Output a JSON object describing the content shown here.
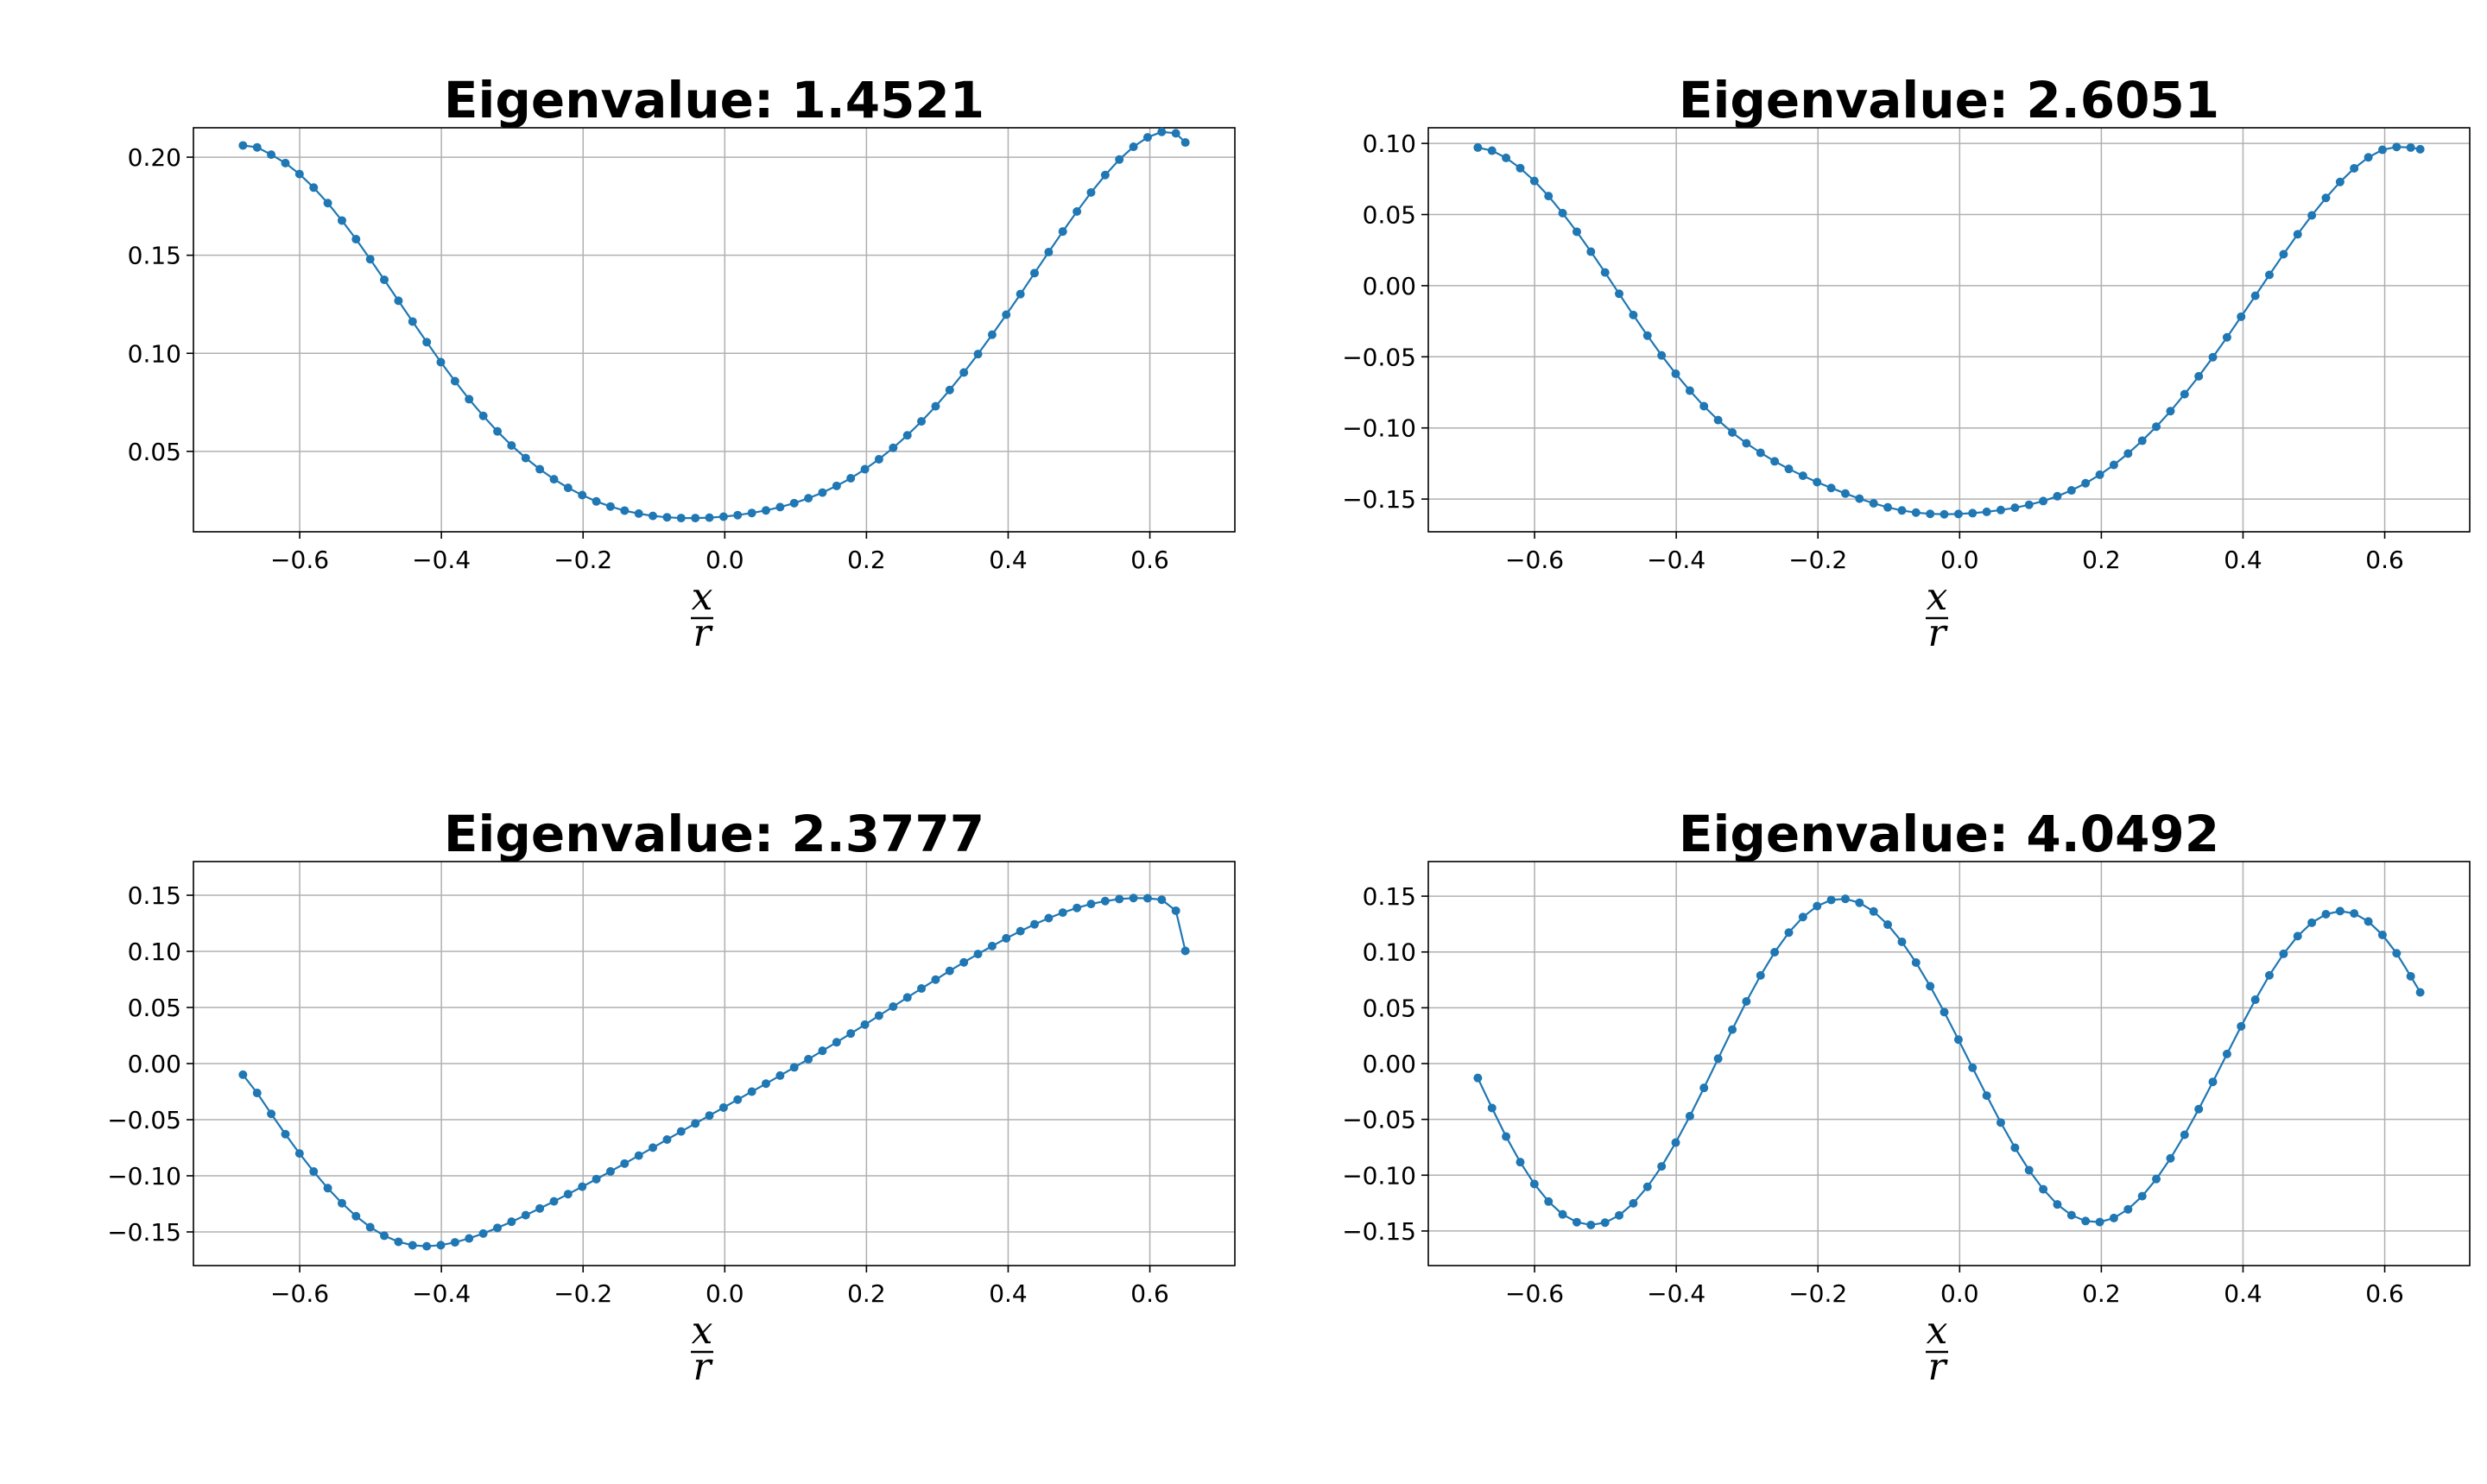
{
  "chart_data": [
    {
      "type": "line",
      "title": "Eigenvalue: 1.4521",
      "xlabel": {
        "numerator": "x",
        "denominator": "r"
      },
      "ylabel": "",
      "xlim": [
        -0.75,
        0.72
      ],
      "ylim": [
        0.009,
        0.215
      ],
      "xticks": [
        -0.6,
        -0.4,
        -0.2,
        0.0,
        0.2,
        0.4,
        0.6
      ],
      "xtick_labels": [
        "−0.6",
        "−0.4",
        "−0.2",
        "0.0",
        "0.2",
        "0.4",
        "0.6"
      ],
      "yticks": [
        0.05,
        0.1,
        0.15,
        0.2
      ],
      "ytick_labels": [
        "0.05",
        "0.10",
        "0.15",
        "0.20"
      ],
      "grid": true,
      "series": [
        {
          "x": [
            -0.6801,
            -0.6601,
            -0.6402,
            -0.6202,
            -0.6003,
            -0.5803,
            -0.5604,
            -0.5404,
            -0.5205,
            -0.5005,
            -0.4806,
            -0.4606,
            -0.4407,
            -0.4207,
            -0.4008,
            -0.3808,
            -0.3609,
            -0.3409,
            -0.3209,
            -0.301,
            -0.281,
            -0.2611,
            -0.2411,
            -0.2212,
            -0.2012,
            -0.1813,
            -0.1613,
            -0.1414,
            -0.1214,
            -0.1015,
            -0.0815,
            -0.0616,
            -0.0416,
            -0.0217,
            -0.0017,
            0.0182,
            0.0382,
            0.0581,
            0.0781,
            0.098,
            0.118,
            0.1379,
            0.1579,
            0.1778,
            0.1978,
            0.2177,
            0.2377,
            0.2577,
            0.2776,
            0.2976,
            0.3175,
            0.3375,
            0.3574,
            0.3774,
            0.3973,
            0.4173,
            0.4372,
            0.4572,
            0.4771,
            0.4971,
            0.517,
            0.537,
            0.5569,
            0.5769,
            0.5968,
            0.6168,
            0.6367,
            0.6501
          ],
          "values": [
            0.206,
            0.205,
            0.2013,
            0.197,
            0.1914,
            0.1845,
            0.1766,
            0.1677,
            0.1582,
            0.148,
            0.1375,
            0.1268,
            0.1162,
            0.1057,
            0.0955,
            0.0858,
            0.0766,
            0.0681,
            0.0602,
            0.053,
            0.0466,
            0.0409,
            0.0358,
            0.0314,
            0.0277,
            0.0245,
            0.0219,
            0.0198,
            0.0183,
            0.0171,
            0.0164,
            0.016,
            0.016,
            0.0162,
            0.0167,
            0.0175,
            0.0186,
            0.0199,
            0.0216,
            0.0236,
            0.0261,
            0.029,
            0.0324,
            0.0363,
            0.0409,
            0.046,
            0.0518,
            0.0582,
            0.0653,
            0.073,
            0.0813,
            0.0902,
            0.0996,
            0.1095,
            0.1197,
            0.1302,
            0.1409,
            0.1516,
            0.1621,
            0.1723,
            0.182,
            0.1909,
            0.1988,
            0.2053,
            0.2101,
            0.2129,
            0.2122,
            0.2075
          ]
        }
      ]
    },
    {
      "type": "line",
      "title": "Eigenvalue: 2.6051",
      "xlabel": {
        "numerator": "x",
        "denominator": "r"
      },
      "ylabel": "",
      "xlim": [
        -0.75,
        0.72
      ],
      "ylim": [
        -0.173,
        0.111
      ],
      "xticks": [
        -0.6,
        -0.4,
        -0.2,
        0.0,
        0.2,
        0.4,
        0.6
      ],
      "xtick_labels": [
        "−0.6",
        "−0.4",
        "−0.2",
        "0.0",
        "0.2",
        "0.4",
        "0.6"
      ],
      "yticks": [
        -0.15,
        -0.1,
        -0.05,
        0.0,
        0.05,
        0.1
      ],
      "ytick_labels": [
        "−0.15",
        "−0.10",
        "−0.05",
        "0.00",
        "0.05",
        "0.10"
      ],
      "grid": true,
      "series": [
        {
          "x": [
            -0.6801,
            -0.6601,
            -0.6402,
            -0.6202,
            -0.6003,
            -0.5803,
            -0.5604,
            -0.5404,
            -0.5205,
            -0.5005,
            -0.4806,
            -0.4606,
            -0.4407,
            -0.4207,
            -0.4008,
            -0.3808,
            -0.3609,
            -0.3409,
            -0.3209,
            -0.301,
            -0.281,
            -0.2611,
            -0.2411,
            -0.2212,
            -0.2012,
            -0.1813,
            -0.1613,
            -0.1414,
            -0.1214,
            -0.1015,
            -0.0815,
            -0.0616,
            -0.0416,
            -0.0217,
            -0.0017,
            0.0182,
            0.0382,
            0.0581,
            0.0781,
            0.098,
            0.118,
            0.1379,
            0.1579,
            0.1778,
            0.1978,
            0.2177,
            0.2377,
            0.2577,
            0.2776,
            0.2976,
            0.3175,
            0.3375,
            0.3574,
            0.3774,
            0.3973,
            0.4173,
            0.4372,
            0.4572,
            0.4771,
            0.4971,
            0.517,
            0.537,
            0.5569,
            0.5769,
            0.5968,
            0.6168,
            0.6367,
            0.6501
          ],
          "values": [
            0.0971,
            0.0949,
            0.0898,
            0.0826,
            0.0736,
            0.063,
            0.051,
            0.0379,
            0.0239,
            0.0093,
            -0.0057,
            -0.0206,
            -0.0351,
            -0.049,
            -0.0619,
            -0.0738,
            -0.0847,
            -0.0945,
            -0.1032,
            -0.1108,
            -0.1175,
            -0.1235,
            -0.1288,
            -0.1336,
            -0.1381,
            -0.1422,
            -0.1461,
            -0.1497,
            -0.153,
            -0.1558,
            -0.158,
            -0.1595,
            -0.1604,
            -0.1607,
            -0.1605,
            -0.1599,
            -0.159,
            -0.1577,
            -0.1561,
            -0.154,
            -0.1514,
            -0.148,
            -0.1439,
            -0.1389,
            -0.1329,
            -0.126,
            -0.118,
            -0.109,
            -0.0991,
            -0.0882,
            -0.0763,
            -0.0637,
            -0.0503,
            -0.0363,
            -0.0218,
            -0.0071,
            0.0076,
            0.0221,
            0.0361,
            0.0494,
            0.0617,
            0.0729,
            0.0825,
            0.0902,
            0.0955,
            0.0975,
            0.0971,
            0.0959
          ]
        }
      ]
    },
    {
      "type": "line",
      "title": "Eigenvalue: 2.3777",
      "xlabel": {
        "numerator": "x",
        "denominator": "r"
      },
      "ylabel": "",
      "xlim": [
        -0.75,
        0.72
      ],
      "ylim": [
        -0.18,
        0.18
      ],
      "xticks": [
        -0.6,
        -0.4,
        -0.2,
        0.0,
        0.2,
        0.4,
        0.6
      ],
      "xtick_labels": [
        "−0.6",
        "−0.4",
        "−0.2",
        "0.0",
        "0.2",
        "0.4",
        "0.6"
      ],
      "yticks": [
        -0.15,
        -0.1,
        -0.05,
        0.0,
        0.05,
        0.1,
        0.15
      ],
      "ytick_labels": [
        "−0.15",
        "−0.10",
        "−0.05",
        "0.00",
        "0.05",
        "0.10",
        "0.15"
      ],
      "grid": true,
      "series": [
        {
          "x": [
            -0.6801,
            -0.6601,
            -0.6402,
            -0.6202,
            -0.6003,
            -0.5803,
            -0.5604,
            -0.5404,
            -0.5205,
            -0.5005,
            -0.4806,
            -0.4606,
            -0.4407,
            -0.4207,
            -0.4008,
            -0.3808,
            -0.3609,
            -0.3409,
            -0.3209,
            -0.301,
            -0.281,
            -0.2611,
            -0.2411,
            -0.2212,
            -0.2012,
            -0.1813,
            -0.1613,
            -0.1414,
            -0.1214,
            -0.1015,
            -0.0815,
            -0.0616,
            -0.0416,
            -0.0217,
            -0.0017,
            0.0182,
            0.0382,
            0.0581,
            0.0781,
            0.098,
            0.118,
            0.1379,
            0.1579,
            0.1778,
            0.1978,
            0.2177,
            0.2377,
            0.2577,
            0.2776,
            0.2976,
            0.3175,
            0.3375,
            0.3574,
            0.3774,
            0.3973,
            0.4173,
            0.4372,
            0.4572,
            0.4771,
            0.4971,
            0.517,
            0.537,
            0.5569,
            0.5769,
            0.5968,
            0.6168,
            0.6367,
            0.6501
          ],
          "values": [
            -0.0099,
            -0.0262,
            -0.0448,
            -0.0629,
            -0.0801,
            -0.0962,
            -0.111,
            -0.1244,
            -0.136,
            -0.1458,
            -0.1534,
            -0.1588,
            -0.1619,
            -0.1628,
            -0.1618,
            -0.1593,
            -0.1558,
            -0.1514,
            -0.1464,
            -0.1409,
            -0.1351,
            -0.1291,
            -0.1228,
            -0.1163,
            -0.1097,
            -0.103,
            -0.0961,
            -0.0891,
            -0.082,
            -0.0749,
            -0.0677,
            -0.0605,
            -0.0534,
            -0.0463,
            -0.0392,
            -0.0321,
            -0.025,
            -0.0179,
            -0.0107,
            -0.0034,
            0.0039,
            0.0114,
            0.019,
            0.0268,
            0.0347,
            0.0427,
            0.0508,
            0.0589,
            0.0669,
            0.0748,
            0.0826,
            0.0902,
            0.0976,
            0.1047,
            0.1116,
            0.118,
            0.1241,
            0.1296,
            0.1345,
            0.1387,
            0.1422,
            0.1448,
            0.1466,
            0.1475,
            0.1473,
            0.146,
            0.1362,
            0.1004
          ]
        }
      ]
    },
    {
      "type": "line",
      "title": "Eigenvalue: 4.0492",
      "xlabel": {
        "numerator": "x",
        "denominator": "r"
      },
      "ylabel": "",
      "xlim": [
        -0.75,
        0.72
      ],
      "ylim": [
        -0.181,
        0.181
      ],
      "xticks": [
        -0.6,
        -0.4,
        -0.2,
        0.0,
        0.2,
        0.4,
        0.6
      ],
      "xtick_labels": [
        "−0.6",
        "−0.4",
        "−0.2",
        "0.0",
        "0.2",
        "0.4",
        "0.6"
      ],
      "yticks": [
        -0.15,
        -0.1,
        -0.05,
        0.0,
        0.05,
        0.1,
        0.15
      ],
      "ytick_labels": [
        "−0.15",
        "−0.10",
        "−0.05",
        "0.00",
        "0.05",
        "0.10",
        "0.15"
      ],
      "grid": true,
      "series": [
        {
          "x": [
            -0.6801,
            -0.6601,
            -0.6402,
            -0.6202,
            -0.6003,
            -0.5803,
            -0.5604,
            -0.5404,
            -0.5205,
            -0.5005,
            -0.4806,
            -0.4606,
            -0.4407,
            -0.4207,
            -0.4008,
            -0.3808,
            -0.3609,
            -0.3409,
            -0.3209,
            -0.301,
            -0.281,
            -0.2611,
            -0.2411,
            -0.2212,
            -0.2012,
            -0.1813,
            -0.1613,
            -0.1414,
            -0.1214,
            -0.1015,
            -0.0815,
            -0.0616,
            -0.0416,
            -0.0217,
            -0.0017,
            0.0182,
            0.0382,
            0.0581,
            0.0781,
            0.098,
            0.118,
            0.1379,
            0.1579,
            0.1778,
            0.1978,
            0.2177,
            0.2377,
            0.2577,
            0.2776,
            0.2976,
            0.3175,
            0.3375,
            0.3574,
            0.3774,
            0.3973,
            0.4173,
            0.4372,
            0.4572,
            0.4771,
            0.4971,
            0.517,
            0.537,
            0.5569,
            0.5769,
            0.5968,
            0.6168,
            0.6367,
            0.6501
          ],
          "values": [
            -0.0129,
            -0.0398,
            -0.0654,
            -0.0883,
            -0.1079,
            -0.1236,
            -0.1351,
            -0.1421,
            -0.1446,
            -0.1425,
            -0.136,
            -0.1252,
            -0.1104,
            -0.0921,
            -0.0708,
            -0.0471,
            -0.0218,
            0.0044,
            0.0305,
            0.0557,
            0.079,
            0.0998,
            0.1174,
            0.1313,
            0.1411,
            0.1466,
            0.1476,
            0.1441,
            0.1363,
            0.1245,
            0.1091,
            0.0905,
            0.0693,
            0.0461,
            0.0215,
            -0.0037,
            -0.0287,
            -0.0529,
            -0.0754,
            -0.0955,
            -0.1126,
            -0.1262,
            -0.1358,
            -0.1411,
            -0.142,
            -0.1384,
            -0.1306,
            -0.1188,
            -0.1034,
            -0.0849,
            -0.0638,
            -0.0408,
            -0.0164,
            0.0086,
            0.0334,
            0.0572,
            0.0791,
            0.0983,
            0.1142,
            0.1262,
            0.1338,
            0.1366,
            0.1345,
            0.1273,
            0.1153,
            0.0988,
            0.0782,
            0.0638
          ]
        }
      ]
    }
  ]
}
